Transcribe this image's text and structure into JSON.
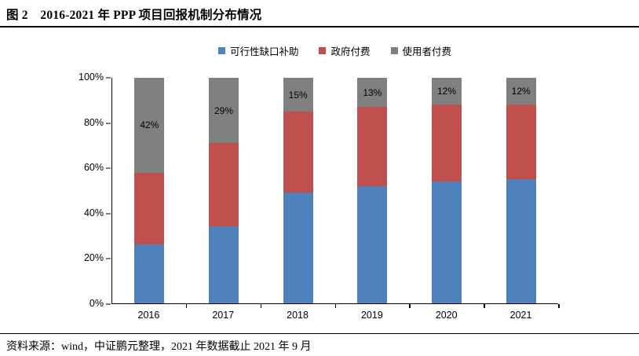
{
  "header": {
    "title": "图 2　2016-2021 年 PPP 项目回报机制分布情况"
  },
  "footer": {
    "source": "资料来源：wind，中证鹏元整理，2021 年数据截止 2021 年 9 月"
  },
  "chart_data": {
    "type": "bar",
    "stacked": true,
    "percent_stacked": true,
    "title": "图 2　2016-2021 年 PPP 项目回报机制分布情况",
    "categories": [
      "2016",
      "2017",
      "2018",
      "2019",
      "2020",
      "2021"
    ],
    "series": [
      {
        "name": "可行性缺口补助",
        "color": "#4F81BD",
        "values": [
          26,
          34,
          49,
          52,
          54,
          55
        ]
      },
      {
        "name": "政府付费",
        "color": "#C0504D",
        "values": [
          32,
          37,
          36,
          35,
          34,
          33
        ]
      },
      {
        "name": "使用者付费",
        "color": "#808080",
        "values": [
          42,
          29,
          15,
          13,
          12,
          12
        ],
        "data_labels": [
          "42%",
          "29%",
          "15%",
          "13%",
          "12%",
          "12%"
        ]
      }
    ],
    "xlabel": "",
    "ylabel": "",
    "ylim": [
      0,
      100
    ],
    "yticks": [
      "0%",
      "20%",
      "40%",
      "60%",
      "80%",
      "100%"
    ],
    "legend_position": "top",
    "grid": false
  }
}
